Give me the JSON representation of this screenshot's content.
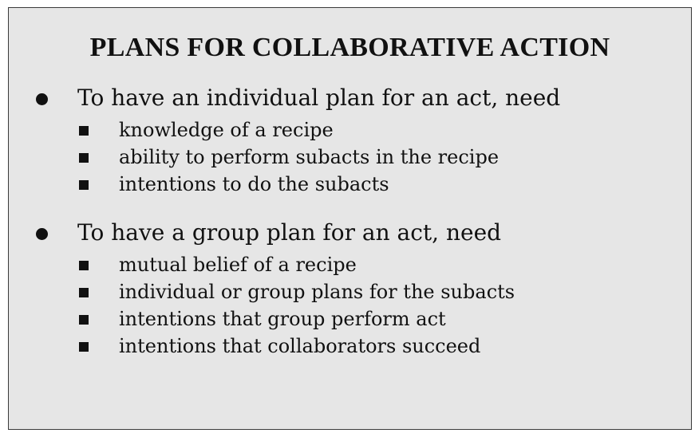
{
  "title": "PLANS FOR COLLABORATIVE ACTION",
  "sections": [
    {
      "heading": "To have an individual plan for an act, need",
      "items": [
        "knowledge of a recipe",
        "ability to perform subacts in the recipe",
        "intentions to do the subacts"
      ]
    },
    {
      "heading": "To have a group plan for an act, need",
      "items": [
        "mutual belief of a recipe",
        "individual or group plans for the subacts",
        "intentions that group perform act",
        "intentions that collaborators succeed"
      ]
    }
  ]
}
